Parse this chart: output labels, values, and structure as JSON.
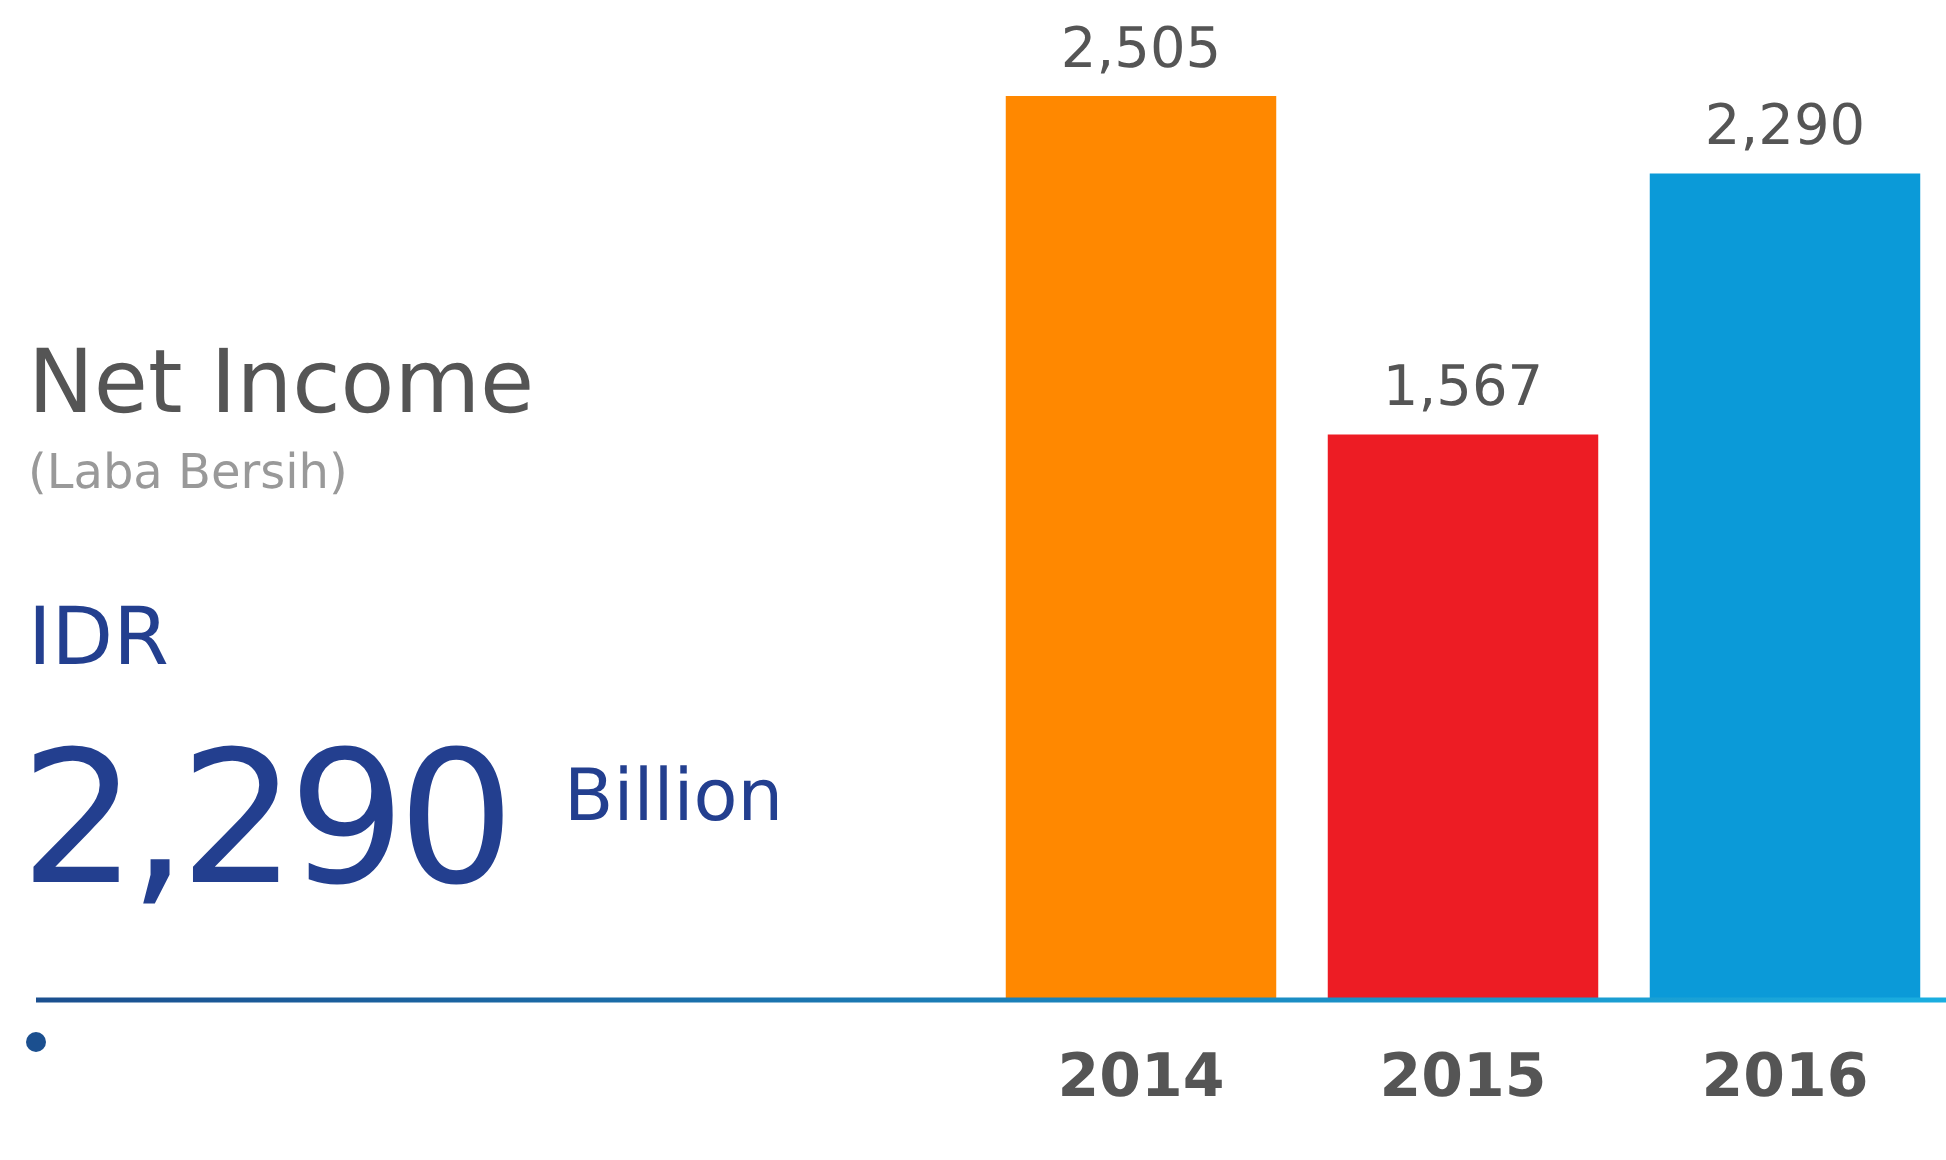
{
  "chart_data": {
    "type": "bar",
    "title": "Net Income",
    "subtitle": "(Laba Bersih)",
    "annotations": [
      "IDR",
      "2,290",
      "Billion"
    ],
    "categories": [
      "2014",
      "2015",
      "2016"
    ],
    "values": [
      2505,
      1567,
      2290
    ],
    "colors": [
      "#ff8800",
      "#ed1c24",
      "#0b9ad8"
    ],
    "value_labels": [
      "2,505",
      "1,567",
      "2,290"
    ],
    "grid": false,
    "legend": false
  }
}
